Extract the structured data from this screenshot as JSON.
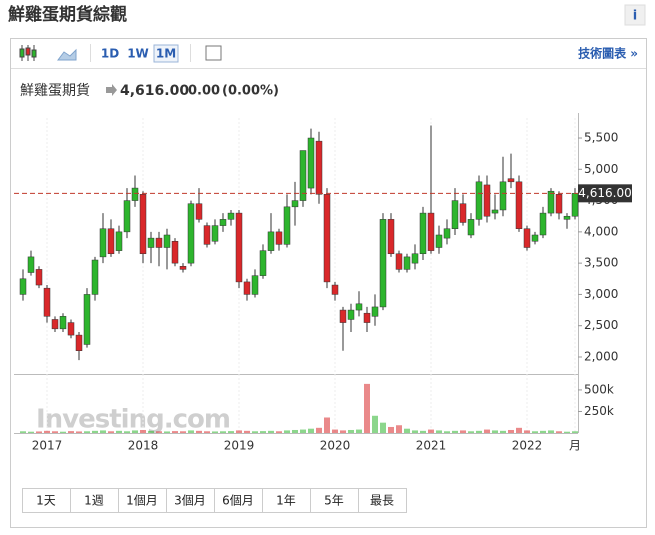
{
  "header": {
    "title": "鮮雞蛋期貨綜觀",
    "info": "i"
  },
  "toolbar": {
    "intervals": [
      "1D",
      "1W",
      "1M"
    ],
    "active": 2,
    "link": "技術圖表 »"
  },
  "quote": {
    "name": "鮮雞蛋期貨",
    "price": "4,616.00",
    "change": "0.00",
    "change_pct": "(0.00%)"
  },
  "ranges": [
    "1天",
    "1週",
    "1個月",
    "3個月",
    "6個月",
    "1年",
    "5年",
    "最長"
  ],
  "chart_data": {
    "type": "candlestick",
    "categories": [
      null,
      null,
      null,
      "2017",
      null,
      null,
      null,
      null,
      null,
      null,
      null,
      null,
      null,
      null,
      null,
      "2018",
      null,
      null,
      null,
      null,
      null,
      null,
      null,
      null,
      null,
      null,
      null,
      "2019",
      null,
      null,
      null,
      null,
      null,
      null,
      null,
      null,
      null,
      null,
      null,
      "2020",
      null,
      null,
      null,
      null,
      null,
      null,
      null,
      null,
      null,
      null,
      null,
      "2021",
      null,
      null,
      null,
      null,
      null,
      null,
      null,
      null,
      null,
      null,
      null,
      "2022",
      null,
      null,
      null,
      null,
      null,
      "月"
    ],
    "open": [
      3000,
      3350,
      3400,
      3100,
      2600,
      2450,
      2550,
      2350,
      2200,
      3000,
      3600,
      4050,
      3700,
      4000,
      4500,
      4600,
      3750,
      3900,
      3750,
      3850,
      3450,
      3500,
      4450,
      4100,
      3850,
      4100,
      4200,
      4300,
      3200,
      3000,
      3300,
      3700,
      4000,
      3800,
      4400,
      4500,
      4700,
      5450,
      4600,
      3150,
      2750,
      2600,
      2750,
      2700,
      2650,
      2800,
      4200,
      3650,
      3400,
      3500,
      3650,
      4300,
      3750,
      3900,
      4050,
      4450,
      3950,
      4200,
      4750,
      4300,
      4350,
      4850,
      4800,
      4050,
      3850,
      3950,
      4300,
      4600,
      4200,
      4250
    ],
    "high": [
      3400,
      3700,
      3450,
      3150,
      2650,
      2700,
      2600,
      2400,
      3100,
      3600,
      4300,
      4200,
      4100,
      4700,
      4900,
      4650,
      4000,
      4000,
      4050,
      3900,
      3500,
      4500,
      4700,
      4150,
      4200,
      4300,
      4350,
      4350,
      3250,
      3400,
      3800,
      4300,
      4050,
      4600,
      4800,
      5300,
      5650,
      5600,
      4700,
      3200,
      2800,
      2850,
      3050,
      2800,
      3000,
      4300,
      4300,
      3700,
      3650,
      3800,
      4400,
      5700,
      4100,
      4200,
      4700,
      4600,
      4300,
      4900,
      4900,
      4600,
      5200,
      5250,
      4900,
      4100,
      4000,
      4400,
      4700,
      4650,
      4300,
      4700
    ],
    "low": [
      2900,
      3300,
      3100,
      2550,
      2400,
      2400,
      2300,
      1950,
      2150,
      2900,
      3500,
      3600,
      3650,
      3900,
      4400,
      3500,
      3500,
      3450,
      3400,
      3450,
      3350,
      3450,
      4150,
      3750,
      3800,
      4000,
      4100,
      3100,
      2900,
      2950,
      3250,
      3650,
      3700,
      3750,
      4100,
      4400,
      4600,
      4450,
      3100,
      2900,
      2100,
      2400,
      2650,
      2400,
      2500,
      2750,
      3600,
      3350,
      3350,
      3400,
      3550,
      3650,
      3650,
      3800,
      3950,
      4100,
      3900,
      4100,
      4150,
      4200,
      4250,
      4700,
      4000,
      3700,
      3800,
      3900,
      4250,
      4200,
      4050,
      4200
    ],
    "close": [
      3250,
      3600,
      3150,
      2650,
      2450,
      2650,
      2350,
      2100,
      3000,
      3550,
      4050,
      3650,
      4000,
      4500,
      4700,
      3650,
      3900,
      3750,
      3950,
      3500,
      3400,
      4450,
      4200,
      3800,
      4100,
      4200,
      4300,
      3200,
      3000,
      3300,
      3700,
      4000,
      3800,
      4400,
      4500,
      5300,
      5500,
      4600,
      3200,
      3000,
      2550,
      2750,
      2850,
      2550,
      2800,
      4200,
      3650,
      3400,
      3600,
      3650,
      4300,
      3700,
      3950,
      4050,
      4500,
      4150,
      4200,
      4800,
      4250,
      4350,
      4800,
      4800,
      4050,
      3750,
      3950,
      4300,
      4650,
      4300,
      4250,
      4616
    ],
    "volume": [
      20000,
      15000,
      18000,
      25000,
      20000,
      15000,
      22000,
      18000,
      20000,
      25000,
      30000,
      20000,
      25000,
      20000,
      30000,
      35000,
      25000,
      20000,
      18000,
      22000,
      20000,
      30000,
      25000,
      20000,
      18000,
      20000,
      22000,
      30000,
      25000,
      20000,
      22000,
      25000,
      20000,
      30000,
      35000,
      40000,
      50000,
      60000,
      180000,
      40000,
      30000,
      35000,
      40000,
      570000,
      200000,
      120000,
      70000,
      90000,
      50000,
      30000,
      25000,
      40000,
      30000,
      20000,
      25000,
      30000,
      20000,
      25000,
      40000,
      30000,
      25000,
      35000,
      60000,
      30000,
      20000,
      25000,
      30000,
      20000,
      15000,
      20000
    ],
    "ylim": [
      1760,
      5820
    ],
    "yticks": [
      {
        "value": 2000,
        "label": "2,000"
      },
      {
        "value": 2500,
        "label": "2,500"
      },
      {
        "value": 3000,
        "label": "3,000"
      },
      {
        "value": 3500,
        "label": "3,500"
      },
      {
        "value": 4000,
        "label": "4,000"
      },
      {
        "value": 4500,
        "label": "4,500"
      },
      {
        "value": 5000,
        "label": "5,000"
      },
      {
        "value": 5500,
        "label": "5,500"
      }
    ],
    "vlim": [
      0,
      650000
    ],
    "vticks": [
      {
        "value": 250000,
        "label": "250k"
      },
      {
        "value": 500000,
        "label": "500k"
      }
    ],
    "last_price": {
      "value": 4616,
      "label": "4,616.00"
    },
    "watermark": "Investing.com",
    "up_color": "#2db52d",
    "down_color": "#d9282a"
  }
}
